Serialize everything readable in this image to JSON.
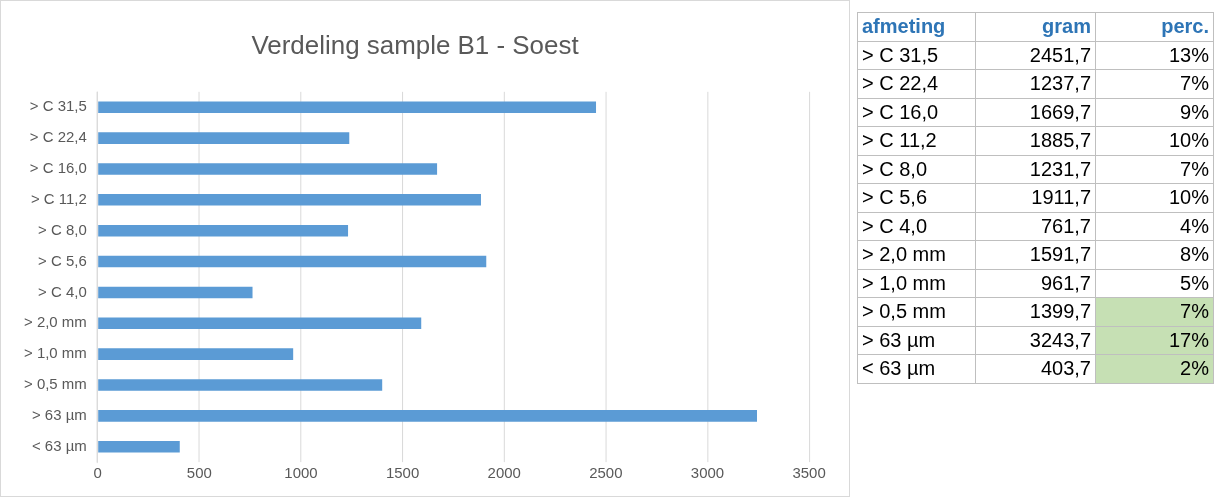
{
  "chart_data": [
    {
      "type": "bar",
      "orientation": "horizontal",
      "title": "Verdeling sample B1 - Soest",
      "categories": [
        "> C 31,5",
        "> C 22,4",
        "> C 16,0",
        "> C 11,2",
        "> C 8,0",
        "> C 5,6",
        "> C 4,0",
        "> 2,0 mm",
        "> 1,0 mm",
        "> 0,5 mm",
        "> 63 µm",
        "< 63 µm"
      ],
      "values": [
        2451.7,
        1237.7,
        1669.7,
        1885.7,
        1231.7,
        1911.7,
        761.7,
        1591.7,
        961.7,
        1399.7,
        3243.7,
        403.7
      ],
      "color": "#5b9bd5",
      "xlim": [
        0,
        3500
      ],
      "xticks": [
        0,
        500,
        1000,
        1500,
        2000,
        2500,
        3000,
        3500
      ],
      "grid": "x",
      "legend": false
    },
    {
      "type": "other",
      "annotations": [
        "afmeting",
        "gram",
        "perc.",
        "> C 31,5",
        "2451,7",
        "13%",
        "> C 22,4",
        "1237,7",
        "7%",
        "> C 16,0",
        "1669,7",
        "9%",
        "> C 11,2",
        "1885,7",
        "10%",
        "> C 8,0",
        "1231,7",
        "7%",
        "> C 5,6",
        "1911,7",
        "10%",
        "> C 4,0",
        "761,7",
        "4%",
        "> 2,0 mm",
        "1591,7",
        "8%",
        "> 1,0 mm",
        "961,7",
        "5%",
        "> 0,5 mm",
        "1399,7",
        "7%",
        "> 63 µm",
        "3243,7",
        "17%",
        "< 63 µm",
        "403,7",
        "2%"
      ],
      "colors": [
        null,
        null,
        null,
        null,
        null,
        null,
        null,
        null,
        null,
        null,
        null,
        null,
        null,
        null,
        null,
        null,
        null,
        null,
        null,
        null,
        null,
        null,
        null,
        null,
        null,
        null,
        null,
        null,
        null,
        null,
        null,
        null,
        "#c6e0b4",
        null,
        null,
        "#c6e0b4",
        null,
        null,
        "#c6e0b4"
      ]
    }
  ]
}
